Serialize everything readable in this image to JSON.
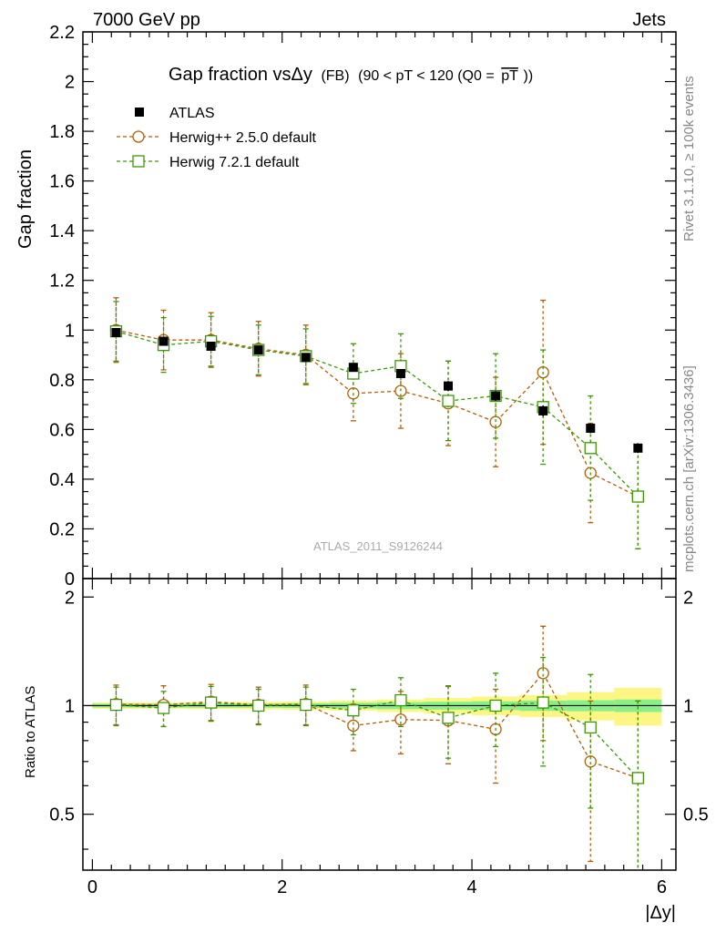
{
  "header": {
    "left": "7000 GeV pp",
    "right": "Jets"
  },
  "side_notes": {
    "rivet": "Rivet 3.1.10, ≥ 100k events",
    "mcplots": "mcplots.cern.ch [arXiv:1306.3436]"
  },
  "watermark": "ATLAS_2011_S9126244",
  "chart_data": [
    {
      "type": "scatter",
      "panel": "main",
      "title_main": "Gap fraction vsΔy",
      "title_sub": "(FB)",
      "title_range": "(90 < pT < 120 (Q0 =",
      "title_qbar": "pT",
      "title_close": "))",
      "ylabel": "Gap fraction",
      "xlabel": "|Δy|",
      "xlim": [
        -0.1,
        6.15
      ],
      "ylim": [
        0,
        2.2
      ],
      "xticks": [
        0,
        2,
        4,
        6
      ],
      "xtick_labels": [
        "0",
        "2",
        "4",
        "6"
      ],
      "yticks": [
        0,
        0.2,
        0.4,
        0.6,
        0.8,
        1,
        1.2,
        1.4,
        1.6,
        1.8,
        2,
        2.2
      ],
      "ytick_labels": [
        "0",
        "0.2",
        "0.4",
        "0.6",
        "0.8",
        "1",
        "1.2",
        "1.4",
        "1.6",
        "1.8",
        "2",
        "2.2"
      ],
      "series": [
        {
          "name": "ATLAS",
          "color": "#000000",
          "marker": "filled-square",
          "x": [
            0.25,
            0.75,
            1.25,
            1.75,
            2.25,
            2.75,
            3.25,
            3.75,
            4.25,
            4.75,
            5.25,
            5.75
          ],
          "y": [
            0.99,
            0.955,
            0.935,
            0.92,
            0.89,
            0.85,
            0.825,
            0.775,
            0.735,
            0.675,
            0.605,
            0.525
          ],
          "err": [
            0.012,
            0.012,
            0.012,
            0.012,
            0.013,
            0.015,
            0.018,
            0.02,
            0.02,
            0.022,
            0.02,
            0.02
          ]
        },
        {
          "name": "Herwig++ 2.5.0 default",
          "color": "#b85c00",
          "marker": "open-circle",
          "x": [
            0.25,
            0.75,
            1.25,
            1.75,
            2.25,
            2.75,
            3.25,
            3.75,
            4.25,
            4.75,
            5.25,
            5.75
          ],
          "y": [
            1.0,
            0.96,
            0.96,
            0.925,
            0.9,
            0.745,
            0.755,
            0.705,
            0.63,
            0.83,
            0.425,
            0.33
          ],
          "err": [
            0.13,
            0.12,
            0.11,
            0.11,
            0.12,
            0.11,
            0.15,
            0.17,
            0.18,
            0.29,
            0.2,
            0.21
          ]
        },
        {
          "name": "Herwig 7.2.1 default",
          "color": "#3a9a00",
          "marker": "open-square",
          "x": [
            0.25,
            0.75,
            1.25,
            1.75,
            2.25,
            2.75,
            3.25,
            3.75,
            4.25,
            4.75,
            5.25,
            5.75
          ],
          "y": [
            0.995,
            0.94,
            0.955,
            0.92,
            0.895,
            0.825,
            0.855,
            0.715,
            0.735,
            0.69,
            0.525,
            0.33
          ],
          "err": [
            0.12,
            0.11,
            0.1,
            0.1,
            0.11,
            0.12,
            0.13,
            0.16,
            0.17,
            0.23,
            0.21,
            0.21
          ]
        }
      ]
    },
    {
      "type": "scatter",
      "panel": "ratio",
      "ylabel": "Ratio to ATLAS",
      "xlabel": "|Δy|",
      "xlim": [
        -0.1,
        6.15
      ],
      "ylim": [
        0.35,
        2.25
      ],
      "yscale": "log",
      "yticks": [
        0.5,
        1,
        2
      ],
      "ytick_labels": [
        "0.5",
        "1",
        "2"
      ],
      "xticks": [
        0,
        2,
        4,
        6
      ],
      "xtick_labels": [
        "0",
        "2",
        "4",
        "6"
      ],
      "bands": {
        "bin_edges": [
          0,
          0.5,
          1,
          1.5,
          2,
          2.5,
          3,
          3.5,
          4,
          4.5,
          5,
          5.5,
          6
        ],
        "stat_halfwidth": [
          0.012,
          0.012,
          0.013,
          0.013,
          0.015,
          0.018,
          0.022,
          0.025,
          0.028,
          0.033,
          0.035,
          0.04
        ],
        "total_halfwidth": [
          0.02,
          0.02,
          0.022,
          0.024,
          0.026,
          0.032,
          0.04,
          0.05,
          0.06,
          0.07,
          0.09,
          0.12
        ],
        "stat_color": "#88f088",
        "total_color": "#fdf684"
      },
      "reference_line": 1,
      "series": [
        {
          "name": "Herwig++ 2.5.0 default",
          "color": "#b85c00",
          "marker": "open-circle",
          "x": [
            0.25,
            0.75,
            1.25,
            1.75,
            2.25,
            2.75,
            3.25,
            3.75,
            4.25,
            4.75,
            5.25,
            5.75
          ],
          "y": [
            1.01,
            1.005,
            1.025,
            1.005,
            1.01,
            0.88,
            0.915,
            0.91,
            0.86,
            1.23,
            0.7,
            0.63
          ],
          "err": [
            0.13,
            0.13,
            0.12,
            0.12,
            0.13,
            0.13,
            0.18,
            0.22,
            0.25,
            0.43,
            0.33,
            0.4
          ]
        },
        {
          "name": "Herwig 7.2.1 default",
          "color": "#3a9a00",
          "marker": "open-square",
          "x": [
            0.25,
            0.75,
            1.25,
            1.75,
            2.25,
            2.75,
            3.25,
            3.75,
            4.25,
            4.75,
            5.25,
            5.75
          ],
          "y": [
            1.005,
            0.985,
            1.02,
            1.0,
            1.005,
            0.97,
            1.035,
            0.925,
            1.0,
            1.02,
            0.87,
            0.63
          ],
          "err": [
            0.12,
            0.11,
            0.11,
            0.11,
            0.12,
            0.14,
            0.16,
            0.21,
            0.23,
            0.34,
            0.35,
            0.4
          ]
        }
      ]
    }
  ]
}
